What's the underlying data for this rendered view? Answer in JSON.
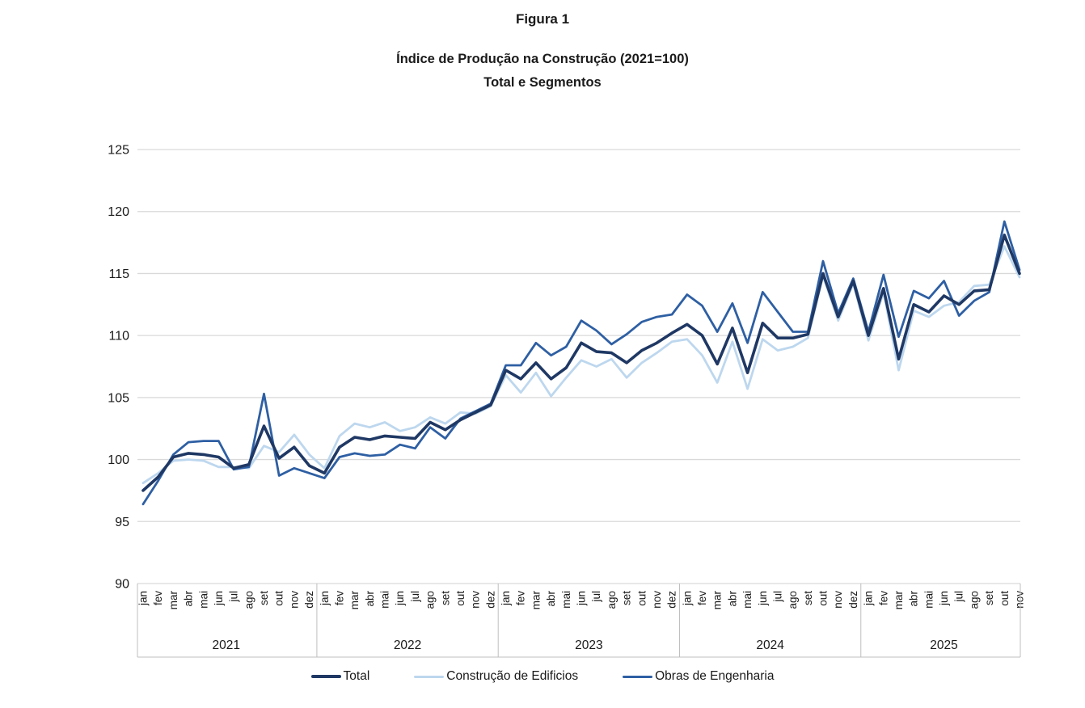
{
  "header": {
    "figure_label": "Figura 1",
    "title": "Índice de Produção na Construção (2021=100)",
    "subtitle": "Total e Segmentos"
  },
  "chart_data": {
    "type": "line",
    "title": "Figura 1",
    "subtitle": "Índice de Produção na Construção (2021=100) — Total e Segmentos",
    "ylim": [
      90,
      125
    ],
    "yticks": [
      90,
      95,
      100,
      105,
      110,
      115,
      120,
      125
    ],
    "grid": true,
    "legend_position": "bottom",
    "x_unit": "month",
    "month_labels": [
      "jan",
      "fev",
      "mar",
      "abr",
      "mai",
      "jun",
      "jul",
      "ago",
      "set",
      "out",
      "nov",
      "dez"
    ],
    "years": [
      {
        "label": "2021",
        "months": 12
      },
      {
        "label": "2022",
        "months": 12
      },
      {
        "label": "2023",
        "months": 12
      },
      {
        "label": "2024",
        "months": 12
      },
      {
        "label": "2025",
        "months": 11
      }
    ],
    "colors": {
      "grid": "#D9D9D9",
      "axis_band": "#BFBFBF",
      "axis_text": "#1a1a1a"
    },
    "series": [
      {
        "name": "Total",
        "color": "#1F3864",
        "stroke_width": 3.6,
        "values": [
          97.5,
          98.6,
          100.2,
          100.5,
          100.4,
          100.2,
          99.3,
          99.6,
          102.7,
          100.1,
          101.0,
          99.5,
          98.9,
          101.0,
          101.8,
          101.6,
          101.9,
          101.8,
          101.7,
          103.0,
          102.4,
          103.2,
          103.8,
          104.4,
          107.2,
          106.5,
          107.8,
          106.5,
          107.4,
          109.4,
          108.7,
          108.6,
          107.8,
          108.8,
          109.4,
          110.2,
          110.9,
          110.0,
          107.7,
          110.6,
          107.0,
          111.0,
          109.8,
          109.8,
          110.1,
          115.0,
          111.5,
          114.4,
          110.0,
          113.8,
          108.1,
          112.5,
          111.9,
          113.2,
          112.5,
          113.6,
          113.7,
          118.1,
          115.0
        ]
      },
      {
        "name": "Construção de Edificios",
        "color": "#BDD7EE",
        "stroke_width": 2.8,
        "values": [
          98.1,
          98.9,
          99.9,
          100.0,
          99.9,
          99.4,
          99.4,
          99.3,
          101.1,
          100.6,
          102.0,
          100.4,
          99.3,
          101.9,
          102.9,
          102.6,
          103.0,
          102.3,
          102.6,
          103.4,
          102.9,
          103.8,
          103.7,
          104.3,
          106.8,
          105.4,
          107.0,
          105.1,
          106.6,
          108.0,
          107.5,
          108.1,
          106.6,
          107.8,
          108.6,
          109.5,
          109.7,
          108.4,
          106.2,
          109.5,
          105.7,
          109.7,
          108.8,
          109.1,
          109.8,
          114.8,
          111.2,
          114.2,
          109.6,
          113.5,
          107.2,
          112.0,
          111.5,
          112.4,
          112.7,
          114.0,
          114.1,
          117.2,
          114.7
        ]
      },
      {
        "name": "Obras de Engenharia",
        "color": "#2E5FA3",
        "stroke_width": 2.8,
        "values": [
          96.4,
          98.3,
          100.4,
          101.4,
          101.5,
          101.5,
          99.2,
          99.4,
          105.3,
          98.7,
          99.3,
          98.9,
          98.5,
          100.2,
          100.5,
          100.3,
          100.4,
          101.2,
          100.9,
          102.6,
          101.7,
          103.3,
          103.9,
          104.5,
          107.6,
          107.6,
          109.4,
          108.4,
          109.1,
          111.2,
          110.4,
          109.3,
          110.1,
          111.1,
          111.5,
          111.7,
          113.3,
          112.4,
          110.3,
          112.6,
          109.4,
          113.5,
          111.9,
          110.3,
          110.3,
          116.0,
          111.8,
          114.6,
          110.3,
          114.9,
          109.9,
          113.6,
          113.0,
          114.4,
          111.6,
          112.8,
          113.5,
          119.2,
          115.3
        ]
      }
    ]
  }
}
